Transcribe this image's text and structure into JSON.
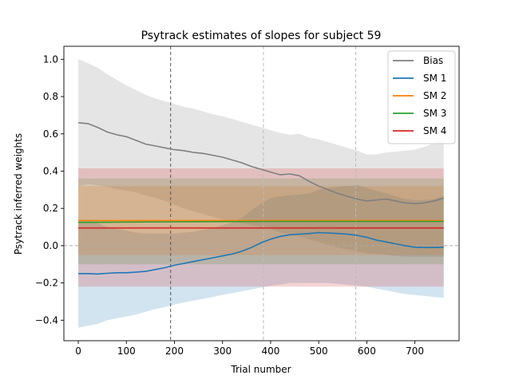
{
  "chart_data": {
    "type": "line",
    "title": "Psytrack estimates of slopes for subject 59",
    "xlabel": "Trial number",
    "ylabel": "Psytrack inferred weights",
    "xlim": [
      -30,
      792
    ],
    "ylim": [
      -0.51,
      1.07
    ],
    "xticks": [
      0,
      100,
      200,
      300,
      400,
      500,
      600,
      700
    ],
    "yticks": [
      -0.4,
      -0.2,
      0.0,
      0.2,
      0.4,
      0.6,
      0.8,
      1.0
    ],
    "ytick_labels": [
      "−0.4",
      "−0.2",
      "0.0",
      "0.2",
      "0.4",
      "0.6",
      "0.8",
      "1.0"
    ],
    "reference_hline": 0,
    "vlines": [
      {
        "x": 192,
        "style": "dark"
      },
      {
        "x": 385,
        "style": "light"
      },
      {
        "x": 577,
        "style": "light"
      }
    ],
    "legend_position": "top-right",
    "series": [
      {
        "name": "Bias",
        "color": "#7f7f7f",
        "x": [
          0,
          20,
          40,
          60,
          80,
          100,
          120,
          140,
          160,
          180,
          200,
          220,
          240,
          260,
          280,
          300,
          320,
          340,
          360,
          380,
          400,
          420,
          440,
          460,
          480,
          500,
          520,
          540,
          560,
          580,
          600,
          620,
          640,
          660,
          680,
          700,
          720,
          740,
          760
        ],
        "values": [
          0.66,
          0.655,
          0.635,
          0.61,
          0.595,
          0.585,
          0.565,
          0.545,
          0.535,
          0.525,
          0.515,
          0.51,
          0.5,
          0.495,
          0.485,
          0.475,
          0.46,
          0.445,
          0.425,
          0.41,
          0.395,
          0.38,
          0.385,
          0.375,
          0.345,
          0.32,
          0.3,
          0.28,
          0.265,
          0.25,
          0.24,
          0.245,
          0.25,
          0.24,
          0.23,
          0.225,
          0.23,
          0.24,
          0.255
        ],
        "lower": [
          0.32,
          0.33,
          0.325,
          0.315,
          0.305,
          0.295,
          0.285,
          0.27,
          0.255,
          0.24,
          0.22,
          0.2,
          0.185,
          0.17,
          0.155,
          0.14,
          0.13,
          0.12,
          0.11,
          0.1,
          0.09,
          0.07,
          0.06,
          0.05,
          0.035,
          0.02,
          0.005,
          -0.01,
          -0.02,
          -0.03,
          -0.04,
          -0.045,
          -0.05,
          -0.055,
          -0.06,
          -0.06,
          -0.06,
          -0.06,
          -0.06
        ],
        "upper": [
          1.0,
          0.98,
          0.955,
          0.92,
          0.89,
          0.86,
          0.835,
          0.81,
          0.79,
          0.775,
          0.76,
          0.745,
          0.735,
          0.72,
          0.705,
          0.695,
          0.68,
          0.665,
          0.65,
          0.635,
          0.62,
          0.605,
          0.595,
          0.6,
          0.58,
          0.57,
          0.555,
          0.54,
          0.525,
          0.51,
          0.49,
          0.49,
          0.5,
          0.505,
          0.51,
          0.515,
          0.53,
          0.55,
          0.575
        ]
      },
      {
        "name": "SM 1",
        "color": "#1f77b4",
        "x": [
          0,
          20,
          40,
          60,
          80,
          100,
          120,
          140,
          160,
          180,
          200,
          220,
          240,
          260,
          280,
          300,
          320,
          340,
          360,
          380,
          400,
          420,
          440,
          460,
          480,
          500,
          520,
          540,
          560,
          580,
          600,
          620,
          640,
          660,
          680,
          700,
          720,
          740,
          760
        ],
        "values": [
          -0.15,
          -0.15,
          -0.152,
          -0.148,
          -0.145,
          -0.145,
          -0.142,
          -0.138,
          -0.128,
          -0.118,
          -0.105,
          -0.095,
          -0.085,
          -0.075,
          -0.065,
          -0.055,
          -0.045,
          -0.03,
          -0.01,
          0.015,
          0.035,
          0.05,
          0.058,
          0.062,
          0.065,
          0.07,
          0.068,
          0.065,
          0.062,
          0.055,
          0.045,
          0.03,
          0.02,
          0.01,
          0.0,
          -0.008,
          -0.01,
          -0.01,
          -0.008
        ],
        "lower": [
          -0.44,
          -0.43,
          -0.42,
          -0.4,
          -0.39,
          -0.38,
          -0.37,
          -0.355,
          -0.34,
          -0.33,
          -0.315,
          -0.305,
          -0.295,
          -0.285,
          -0.275,
          -0.265,
          -0.255,
          -0.245,
          -0.235,
          -0.225,
          -0.215,
          -0.21,
          -0.2,
          -0.2,
          -0.2,
          -0.2,
          -0.2,
          -0.205,
          -0.21,
          -0.215,
          -0.22,
          -0.23,
          -0.24,
          -0.25,
          -0.26,
          -0.265,
          -0.27,
          -0.275,
          -0.28
        ],
        "upper": [
          0.14,
          0.135,
          0.12,
          0.1,
          0.09,
          0.08,
          0.07,
          0.065,
          0.065,
          0.065,
          0.065,
          0.07,
          0.075,
          0.085,
          0.095,
          0.11,
          0.125,
          0.15,
          0.19,
          0.225,
          0.255,
          0.265,
          0.27,
          0.275,
          0.28,
          0.3,
          0.31,
          0.315,
          0.32,
          0.325,
          0.31,
          0.295,
          0.28,
          0.265,
          0.25,
          0.245,
          0.245,
          0.25,
          0.27
        ]
      },
      {
        "name": "SM 2",
        "color": "#ff7f0e",
        "x": [
          0,
          760
        ],
        "values": [
          0.135,
          0.135
        ],
        "lower": [
          -0.05,
          -0.05
        ],
        "upper": [
          0.32,
          0.32
        ]
      },
      {
        "name": "SM 3",
        "color": "#2ca02c",
        "x": [
          0,
          200,
          400,
          600,
          760
        ],
        "values": [
          0.125,
          0.128,
          0.13,
          0.13,
          0.13
        ],
        "lower": [
          -0.1,
          -0.1,
          -0.1,
          -0.1,
          -0.1
        ],
        "upper": [
          0.36,
          0.36,
          0.36,
          0.36,
          0.36
        ]
      },
      {
        "name": "SM 4",
        "color": "#d62728",
        "x": [
          0,
          760
        ],
        "values": [
          0.095,
          0.095
        ],
        "lower": [
          -0.22,
          -0.22
        ],
        "upper": [
          0.415,
          0.415
        ]
      }
    ]
  }
}
